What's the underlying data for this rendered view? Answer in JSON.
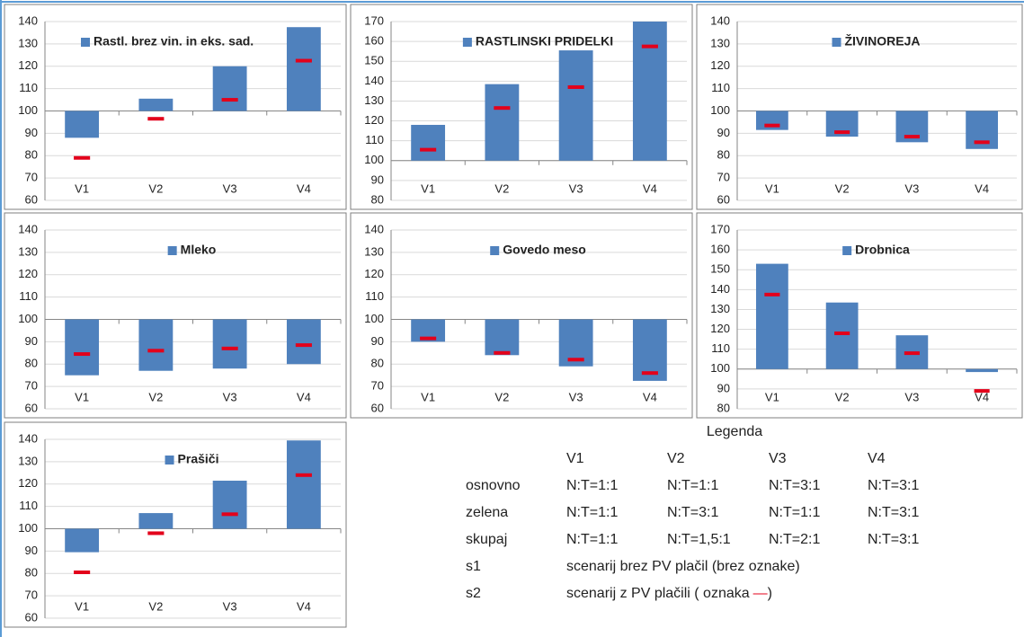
{
  "chart_data": [
    {
      "type": "bar",
      "bar_base": 100,
      "legend": "upper left",
      "ylim": [
        60,
        140
      ],
      "yticks": [
        60,
        70,
        80,
        90,
        100,
        110,
        120,
        130,
        140
      ],
      "grid": true,
      "categories": [
        "V1",
        "V2",
        "V3",
        "V4"
      ],
      "series": [
        {
          "name": "Rastl. brez vin. in eks. sad.",
          "color": "#4f81bd",
          "values": [
            88,
            105.5,
            120,
            137.5
          ]
        },
        {
          "marker": "dash",
          "color": "#e3001b",
          "values": [
            79,
            96.5,
            105,
            122.5
          ]
        }
      ]
    },
    {
      "type": "bar",
      "bar_base": 100,
      "legend": "upper center",
      "ylim": [
        80,
        170
      ],
      "yticks": [
        80,
        90,
        100,
        110,
        120,
        130,
        140,
        150,
        160,
        170
      ],
      "grid": true,
      "categories": [
        "V1",
        "V2",
        "V3",
        "V4"
      ],
      "series": [
        {
          "name": "RASTLINSKI PRIDELKI",
          "color": "#4f81bd",
          "values": [
            118,
            138.5,
            155.5,
            170
          ]
        },
        {
          "marker": "dash",
          "color": "#e3001b",
          "values": [
            105.5,
            126.5,
            137,
            157.5
          ]
        }
      ]
    },
    {
      "type": "bar",
      "bar_base": 100,
      "legend": "upper center",
      "ylim": [
        60,
        140
      ],
      "yticks": [
        60,
        70,
        80,
        90,
        100,
        110,
        120,
        130,
        140
      ],
      "grid": true,
      "categories": [
        "V1",
        "V2",
        "V3",
        "V4"
      ],
      "series": [
        {
          "name": "ŽIVINOREJA",
          "color": "#4f81bd",
          "values": [
            91.5,
            88.5,
            86,
            83
          ]
        },
        {
          "marker": "dash",
          "color": "#e3001b",
          "values": [
            93.5,
            90.5,
            88.5,
            86
          ]
        }
      ]
    },
    {
      "type": "bar",
      "bar_base": 100,
      "legend": "upper center",
      "ylim": [
        60,
        140
      ],
      "yticks": [
        60,
        70,
        80,
        90,
        100,
        110,
        120,
        130,
        140
      ],
      "grid": true,
      "categories": [
        "V1",
        "V2",
        "V3",
        "V4"
      ],
      "series": [
        {
          "name": "Mleko",
          "color": "#4f81bd",
          "values": [
            75,
            77,
            78,
            80
          ]
        },
        {
          "marker": "dash",
          "color": "#e3001b",
          "values": [
            84.5,
            86,
            87,
            88.5
          ]
        }
      ]
    },
    {
      "type": "bar",
      "bar_base": 100,
      "legend": "upper center",
      "ylim": [
        60,
        140
      ],
      "yticks": [
        60,
        70,
        80,
        90,
        100,
        110,
        120,
        130,
        140
      ],
      "grid": true,
      "categories": [
        "V1",
        "V2",
        "V3",
        "V4"
      ],
      "series": [
        {
          "name": "Govedo meso",
          "color": "#4f81bd",
          "values": [
            90,
            84,
            79,
            72.5
          ]
        },
        {
          "marker": "dash",
          "color": "#e3001b",
          "values": [
            91.5,
            85,
            82,
            76
          ]
        }
      ]
    },
    {
      "type": "bar",
      "bar_base": 100,
      "legend": "upper center",
      "ylim": [
        80,
        170
      ],
      "yticks": [
        80,
        90,
        100,
        110,
        120,
        130,
        140,
        150,
        160,
        170
      ],
      "grid": true,
      "categories": [
        "V1",
        "V2",
        "V3",
        "V4"
      ],
      "series": [
        {
          "name": "Drobnica",
          "color": "#4f81bd",
          "values": [
            153,
            133.5,
            117,
            98.5
          ]
        },
        {
          "marker": "dash",
          "color": "#e3001b",
          "values": [
            137.5,
            118,
            108,
            89
          ]
        }
      ]
    },
    {
      "type": "bar",
      "bar_base": 100,
      "legend": "upper center",
      "ylim": [
        60,
        140
      ],
      "yticks": [
        60,
        70,
        80,
        90,
        100,
        110,
        120,
        130,
        140
      ],
      "grid": true,
      "categories": [
        "V1",
        "V2",
        "V3",
        "V4"
      ],
      "series": [
        {
          "name": "Prašiči",
          "color": "#4f81bd",
          "values": [
            89.5,
            107,
            121.5,
            139.5
          ]
        },
        {
          "marker": "dash",
          "color": "#e3001b",
          "values": [
            80.5,
            98,
            106.5,
            124
          ]
        }
      ]
    }
  ],
  "legend_table": {
    "title": "Legenda",
    "header": [
      "V1",
      "V2",
      "V3",
      "V4"
    ],
    "rows": [
      [
        "osnovno",
        "N:T=1:1",
        "N:T=1:1",
        "N:T=3:1",
        "N:T=3:1"
      ],
      [
        "zelena",
        "N:T=1:1",
        "N:T=3:1",
        "N:T=1:1",
        "N:T=3:1"
      ],
      [
        "skupaj",
        "N:T=1:1",
        "N:T=1,5:1",
        "N:T=2:1",
        "N:T=3:1"
      ]
    ],
    "notes": [
      {
        "label": "s1",
        "text": "scenarij brez PV plačil (brez oznake)"
      },
      {
        "label": "s2",
        "text": "scenarij z PV plačili ( oznaka",
        "mark": "—",
        "after": ")"
      }
    ]
  }
}
